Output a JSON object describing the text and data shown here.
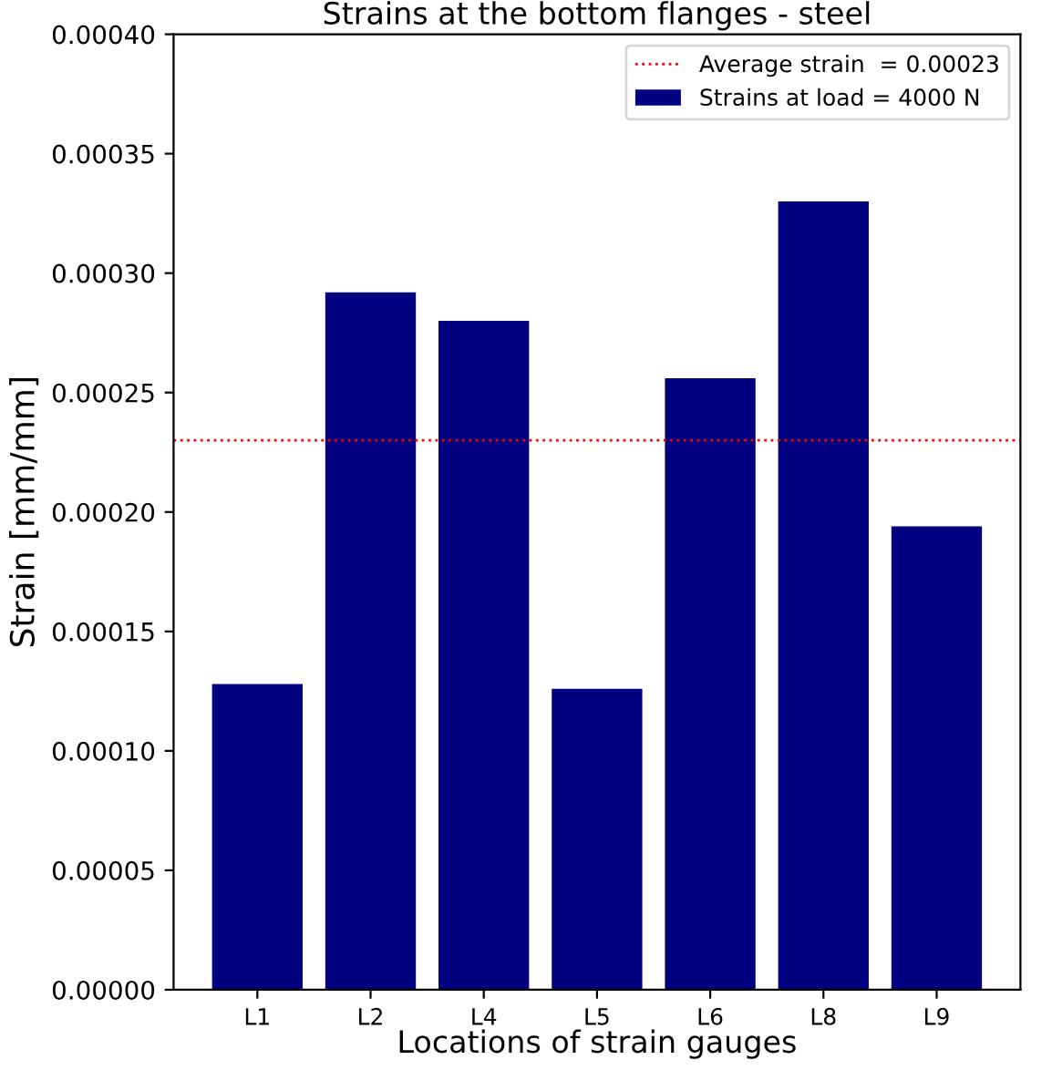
{
  "chart_data": {
    "type": "bar",
    "title": "Strains at the bottom flanges - steel",
    "xlabel": "Locations of strain gauges",
    "ylabel": "Strain [mm/mm]",
    "categories": [
      "L1",
      "L2",
      "L4",
      "L5",
      "L6",
      "L8",
      "L9"
    ],
    "series": [
      {
        "name": "Strains at load = 4000 N",
        "color": "#000080",
        "values": [
          0.000128,
          0.000292,
          0.00028,
          0.000126,
          0.000256,
          0.00033,
          0.000194
        ]
      }
    ],
    "ylim": [
      0,
      0.0004
    ],
    "yticks": [
      {
        "value": 0,
        "label": "0.00000"
      },
      {
        "value": 5e-05,
        "label": "0.00005"
      },
      {
        "value": 0.0001,
        "label": "0.00010"
      },
      {
        "value": 0.00015,
        "label": "0.00015"
      },
      {
        "value": 0.0002,
        "label": "0.00020"
      },
      {
        "value": 0.00025,
        "label": "0.00025"
      },
      {
        "value": 0.0003,
        "label": "0.00030"
      },
      {
        "value": 0.00035,
        "label": "0.00035"
      },
      {
        "value": 0.0004,
        "label": "0.00040"
      }
    ],
    "ref_lines": [
      {
        "axis": "y",
        "value": 0.00023,
        "label": "Average strain  = 0.00023",
        "color": "#ff0000",
        "line_style": "dotted"
      }
    ],
    "legend": "top right",
    "grid": false
  }
}
